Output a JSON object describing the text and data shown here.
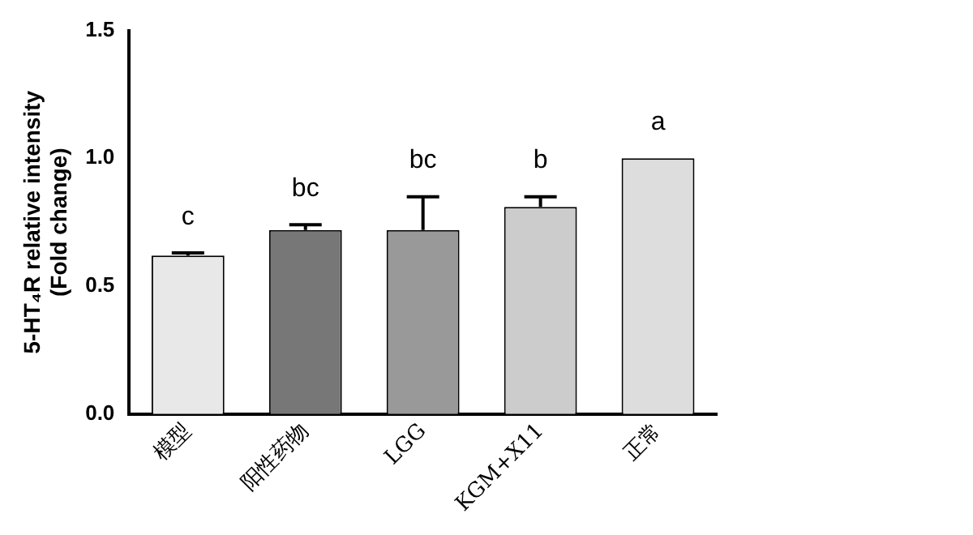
{
  "chart_data": {
    "type": "bar",
    "ylabel": "5-HT₄R relative intensity\n(Fold change)",
    "categories": [
      "模型",
      "阳性药物",
      "LGG",
      "KGM+X11",
      "正常"
    ],
    "values": [
      0.62,
      0.72,
      0.72,
      0.81,
      1.0
    ],
    "errors": [
      0.01,
      0.02,
      0.13,
      0.04,
      null
    ],
    "colors": [
      "#e8e8e8",
      "#777777",
      "#999999",
      "#cccccc",
      "#dddddd"
    ],
    "ylim": [
      0,
      1.5
    ],
    "yticks": [
      {
        "value": 0,
        "label": "0.0"
      },
      0.5,
      {
        "value": 1,
        "label": "1.0"
      },
      1.5
    ],
    "annotations": [
      "c",
      "bc",
      "bc",
      "b",
      "a"
    ]
  }
}
